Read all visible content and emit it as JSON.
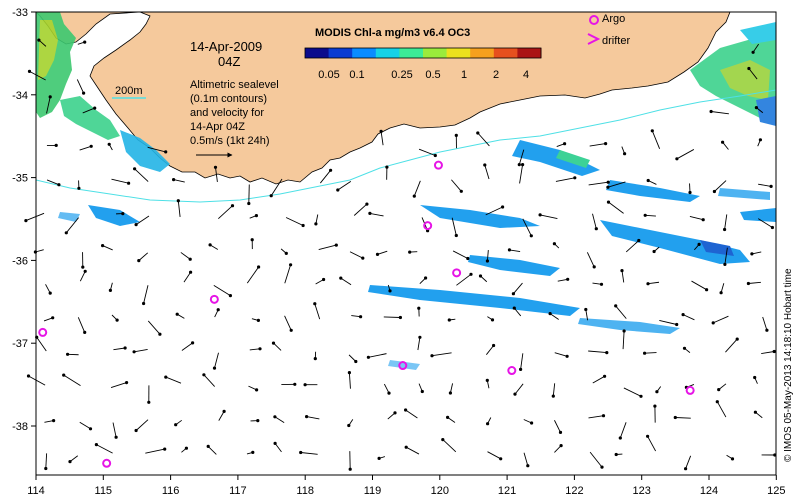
{
  "map": {
    "date_line": "14-Apr-2009",
    "time_line": "04Z",
    "colorbar_title": "MODIS Chl-a mg/m3 v6.4 OC3",
    "colorbar_ticks": [
      "0.05",
      "0.1",
      "0.25",
      "0.5",
      "1",
      "2",
      "4"
    ],
    "colorbar_colors": [
      "#0b0b8c",
      "#0a3cd2",
      "#0a8cff",
      "#16d2e6",
      "#3ceb96",
      "#9aeb3c",
      "#ebe11e",
      "#f5a01e",
      "#e6501e",
      "#aa1414"
    ],
    "isobath_label": "200m",
    "note_lines": [
      "Altimetric sealevel",
      "(0.1m contours)",
      "and velocity for",
      "14-Apr 04Z",
      "0.5m/s (1kt 24h)"
    ],
    "legend": {
      "argo": "Argo",
      "drifter": "drifter"
    },
    "credit": "© IMOS 05-May-2013 14:18:10 Hobart time",
    "x_ticks": [
      "114",
      "115",
      "116",
      "117",
      "118",
      "119",
      "120",
      "121",
      "122",
      "123",
      "124",
      "125"
    ],
    "y_ticks": [
      "-33",
      "-34",
      "-35",
      "-36",
      "-37",
      "-38"
    ],
    "colors": {
      "land": "#f5c99c",
      "argo": "#e614e6",
      "isobath": "#4ee0e6",
      "arrow": "#000000"
    },
    "argo_floats": [
      {
        "lon": 119.98,
        "lat": -34.85
      },
      {
        "lon": 119.82,
        "lat": -35.58
      },
      {
        "lon": 120.25,
        "lat": -36.15
      },
      {
        "lon": 116.65,
        "lat": -36.47
      },
      {
        "lon": 114.1,
        "lat": -36.87
      },
      {
        "lon": 119.45,
        "lat": -37.27
      },
      {
        "lon": 121.07,
        "lat": -37.33
      },
      {
        "lon": 123.72,
        "lat": -37.57
      },
      {
        "lon": 115.05,
        "lat": -38.45
      }
    ]
  }
}
